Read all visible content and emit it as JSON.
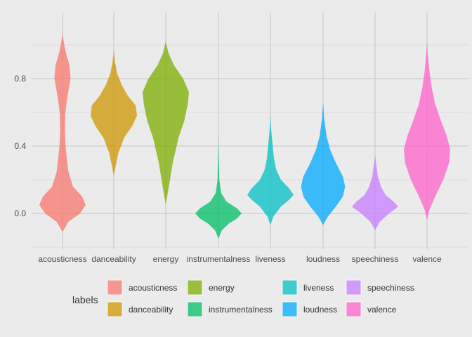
{
  "chart_data": {
    "type": "violin",
    "title": "",
    "xlabel": "",
    "ylabel": "",
    "ylim": [
      -0.2,
      1.05
    ],
    "y_ticks": [
      0.0,
      0.4,
      0.8
    ],
    "y_tick_labels": [
      "0.0",
      "0.4",
      "0.8"
    ],
    "grid": true,
    "legend": {
      "title": "labels",
      "placement": "bottom"
    },
    "categories": [
      "acousticness",
      "danceability",
      "energy",
      "instrumentalness",
      "liveness",
      "loudness",
      "speechiness",
      "valence"
    ],
    "series": [
      {
        "name": "acousticness",
        "color": "#F8766D",
        "profile": [
          [
            -0.11,
            0.0
          ],
          [
            -0.05,
            0.25
          ],
          [
            0.0,
            0.75
          ],
          [
            0.05,
            1.0
          ],
          [
            0.1,
            0.85
          ],
          [
            0.16,
            0.45
          ],
          [
            0.25,
            0.25
          ],
          [
            0.4,
            0.13
          ],
          [
            0.5,
            0.1
          ],
          [
            0.6,
            0.12
          ],
          [
            0.7,
            0.22
          ],
          [
            0.8,
            0.35
          ],
          [
            0.88,
            0.3
          ],
          [
            0.95,
            0.15
          ],
          [
            1.02,
            0.05
          ],
          [
            1.07,
            0.0
          ]
        ]
      },
      {
        "name": "danceability",
        "color": "#CD9600",
        "profile": [
          [
            0.22,
            0.0
          ],
          [
            0.28,
            0.08
          ],
          [
            0.36,
            0.2
          ],
          [
            0.45,
            0.45
          ],
          [
            0.52,
            0.8
          ],
          [
            0.58,
            1.0
          ],
          [
            0.64,
            0.95
          ],
          [
            0.7,
            0.6
          ],
          [
            0.76,
            0.35
          ],
          [
            0.83,
            0.15
          ],
          [
            0.9,
            0.05
          ],
          [
            0.97,
            0.0
          ]
        ]
      },
      {
        "name": "energy",
        "color": "#7CAE00",
        "profile": [
          [
            0.05,
            0.0
          ],
          [
            0.15,
            0.12
          ],
          [
            0.3,
            0.3
          ],
          [
            0.45,
            0.55
          ],
          [
            0.55,
            0.8
          ],
          [
            0.65,
            0.95
          ],
          [
            0.72,
            1.0
          ],
          [
            0.8,
            0.75
          ],
          [
            0.88,
            0.35
          ],
          [
            0.95,
            0.12
          ],
          [
            1.02,
            0.0
          ]
        ]
      },
      {
        "name": "instrumentalness",
        "color": "#00BE67",
        "profile": [
          [
            -0.15,
            0.0
          ],
          [
            -0.1,
            0.15
          ],
          [
            -0.06,
            0.45
          ],
          [
            -0.03,
            0.8
          ],
          [
            0.0,
            1.0
          ],
          [
            0.03,
            0.8
          ],
          [
            0.07,
            0.35
          ],
          [
            0.12,
            0.12
          ],
          [
            0.2,
            0.04
          ],
          [
            0.3,
            0.02
          ],
          [
            0.45,
            0.0
          ]
        ]
      },
      {
        "name": "liveness",
        "color": "#00BFC4",
        "profile": [
          [
            -0.07,
            0.0
          ],
          [
            -0.02,
            0.12
          ],
          [
            0.04,
            0.45
          ],
          [
            0.08,
            0.8
          ],
          [
            0.11,
            1.0
          ],
          [
            0.15,
            0.8
          ],
          [
            0.2,
            0.45
          ],
          [
            0.26,
            0.25
          ],
          [
            0.33,
            0.15
          ],
          [
            0.4,
            0.1
          ],
          [
            0.5,
            0.03
          ],
          [
            0.58,
            0.0
          ]
        ]
      },
      {
        "name": "loudness",
        "color": "#00A9FF",
        "profile": [
          [
            -0.07,
            0.0
          ],
          [
            -0.02,
            0.2
          ],
          [
            0.04,
            0.55
          ],
          [
            0.1,
            0.85
          ],
          [
            0.16,
            0.95
          ],
          [
            0.22,
            0.85
          ],
          [
            0.3,
            0.55
          ],
          [
            0.38,
            0.3
          ],
          [
            0.46,
            0.15
          ],
          [
            0.56,
            0.05
          ],
          [
            0.66,
            0.0
          ]
        ]
      },
      {
        "name": "speechiness",
        "color": "#C77CFF",
        "profile": [
          [
            -0.1,
            0.0
          ],
          [
            -0.05,
            0.2
          ],
          [
            0.0,
            0.6
          ],
          [
            0.04,
            1.0
          ],
          [
            0.07,
            0.8
          ],
          [
            0.11,
            0.45
          ],
          [
            0.16,
            0.25
          ],
          [
            0.22,
            0.12
          ],
          [
            0.3,
            0.04
          ],
          [
            0.35,
            0.0
          ]
        ]
      },
      {
        "name": "valence",
        "color": "#FF61CC",
        "profile": [
          [
            -0.04,
            0.0
          ],
          [
            0.02,
            0.1
          ],
          [
            0.1,
            0.35
          ],
          [
            0.2,
            0.7
          ],
          [
            0.3,
            0.95
          ],
          [
            0.38,
            1.0
          ],
          [
            0.46,
            0.85
          ],
          [
            0.55,
            0.6
          ],
          [
            0.65,
            0.35
          ],
          [
            0.75,
            0.2
          ],
          [
            0.85,
            0.1
          ],
          [
            0.95,
            0.03
          ],
          [
            1.02,
            0.0
          ]
        ]
      }
    ]
  }
}
